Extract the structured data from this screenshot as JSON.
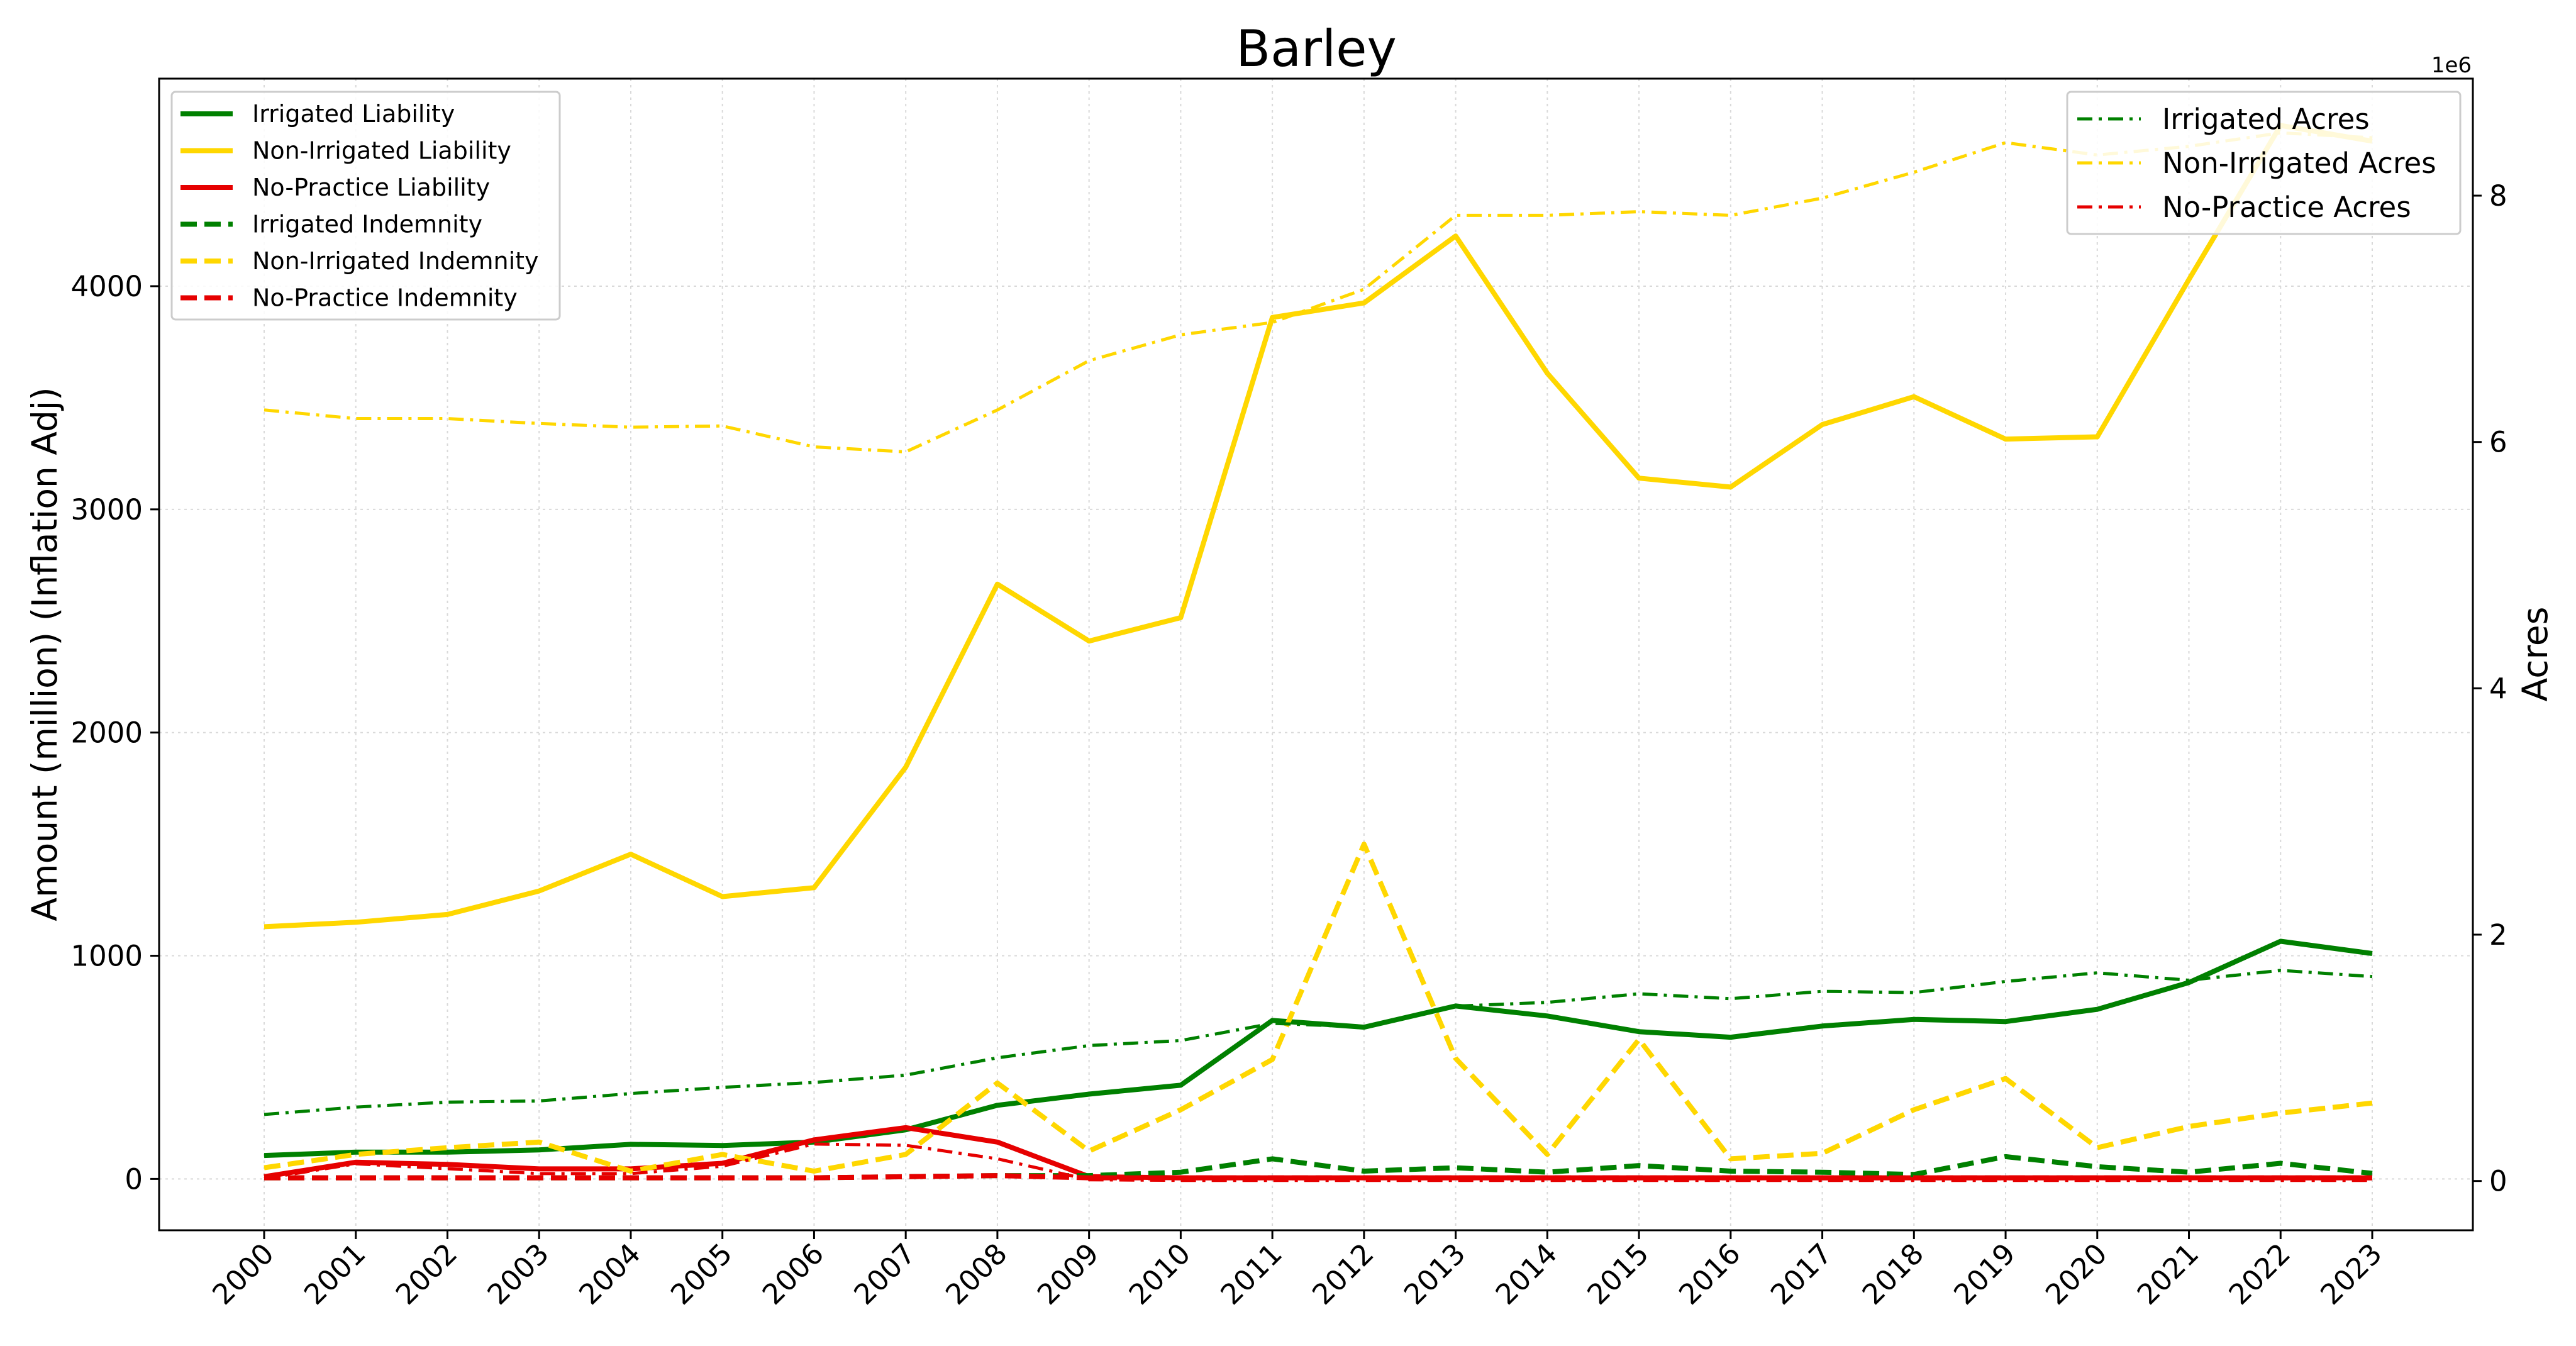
{
  "chart_data": {
    "type": "line",
    "title": "Barley",
    "xlabel": "",
    "ylabel": "Amount (million) (Inflation Adj)",
    "y2label": "Acres",
    "y2_offset_text": "1e6",
    "categories": [
      "2000",
      "2001",
      "2002",
      "2003",
      "2004",
      "2005",
      "2006",
      "2007",
      "2008",
      "2009",
      "2010",
      "2011",
      "2012",
      "2013",
      "2014",
      "2015",
      "2016",
      "2017",
      "2018",
      "2019",
      "2020",
      "2021",
      "2022",
      "2023"
    ],
    "ylim": [
      -230,
      4930
    ],
    "yticks": [
      0,
      1000,
      2000,
      3000,
      4000
    ],
    "y2lim": [
      -400000,
      8950000
    ],
    "y2ticks": [
      0,
      2,
      4,
      6,
      8
    ],
    "y2tick_multiplier": 1000000,
    "grid": true,
    "left_legend_position": "upper left",
    "right_legend_position": "upper right",
    "series": [
      {
        "name": "Irrigated Liability",
        "axis": "left",
        "color": "#008000",
        "style": "solid",
        "values": [
          105,
          120,
          120,
          130,
          155,
          150,
          165,
          220,
          330,
          380,
          420,
          710,
          680,
          775,
          730,
          660,
          635,
          685,
          715,
          705,
          760,
          880,
          1065,
          1010
        ]
      },
      {
        "name": "Non-Irrigated Liability",
        "axis": "left",
        "color": "#FFD700",
        "style": "solid",
        "values": [
          1130,
          1150,
          1185,
          1290,
          1455,
          1265,
          1305,
          1845,
          2665,
          2410,
          2515,
          3860,
          3925,
          4225,
          3610,
          3140,
          3100,
          3380,
          3505,
          3315,
          3325,
          4030,
          4720,
          4650
        ]
      },
      {
        "name": "No-Practice Liability",
        "axis": "left",
        "color": "#E60000",
        "style": "solid",
        "values": [
          10,
          75,
          65,
          45,
          45,
          70,
          175,
          230,
          165,
          10,
          5,
          5,
          5,
          5,
          5,
          5,
          5,
          5,
          5,
          5,
          5,
          5,
          5,
          5
        ]
      },
      {
        "name": "Irrigated Indemnity",
        "axis": "left",
        "color": "#008000",
        "style": "dashed",
        "values": [
          5,
          5,
          5,
          5,
          5,
          5,
          5,
          10,
          15,
          15,
          30,
          90,
          35,
          50,
          30,
          60,
          35,
          30,
          20,
          100,
          55,
          30,
          70,
          25
        ]
      },
      {
        "name": "Non-Irrigated Indemnity",
        "axis": "left",
        "color": "#FFD700",
        "style": "dashed",
        "values": [
          50,
          110,
          140,
          165,
          35,
          110,
          35,
          110,
          430,
          125,
          310,
          535,
          1500,
          540,
          110,
          625,
          90,
          115,
          310,
          450,
          140,
          235,
          295,
          340
        ]
      },
      {
        "name": "No-Practice Indemnity",
        "axis": "left",
        "color": "#E60000",
        "style": "dashed",
        "values": [
          5,
          5,
          5,
          5,
          5,
          5,
          5,
          10,
          15,
          5,
          5,
          5,
          5,
          5,
          5,
          5,
          5,
          5,
          5,
          5,
          5,
          5,
          5,
          5
        ]
      },
      {
        "name": "Irrigated Acres",
        "axis": "right",
        "color": "#008000",
        "style": "dashdot",
        "values": [
          540000,
          600000,
          640000,
          650000,
          710000,
          760000,
          800000,
          860000,
          1000000,
          1100000,
          1140000,
          1280000,
          1250000,
          1420000,
          1450000,
          1520000,
          1480000,
          1540000,
          1530000,
          1620000,
          1690000,
          1630000,
          1710000,
          1660000
        ]
      },
      {
        "name": "Non-Irrigated Acres",
        "axis": "right",
        "color": "#FFD700",
        "style": "dashdot",
        "values": [
          6260000,
          6190000,
          6190000,
          6150000,
          6120000,
          6130000,
          5960000,
          5920000,
          6260000,
          6660000,
          6870000,
          6970000,
          7240000,
          7840000,
          7840000,
          7870000,
          7840000,
          7980000,
          8190000,
          8430000,
          8330000,
          8400000,
          8510000,
          8470000
        ]
      },
      {
        "name": "No-Practice Acres",
        "axis": "right",
        "color": "#E60000",
        "style": "dashdot",
        "values": [
          20000,
          140000,
          100000,
          60000,
          60000,
          120000,
          300000,
          290000,
          180000,
          10000,
          5000,
          5000,
          5000,
          5000,
          5000,
          5000,
          5000,
          5000,
          5000,
          5000,
          5000,
          5000,
          5000,
          5000
        ]
      }
    ]
  }
}
